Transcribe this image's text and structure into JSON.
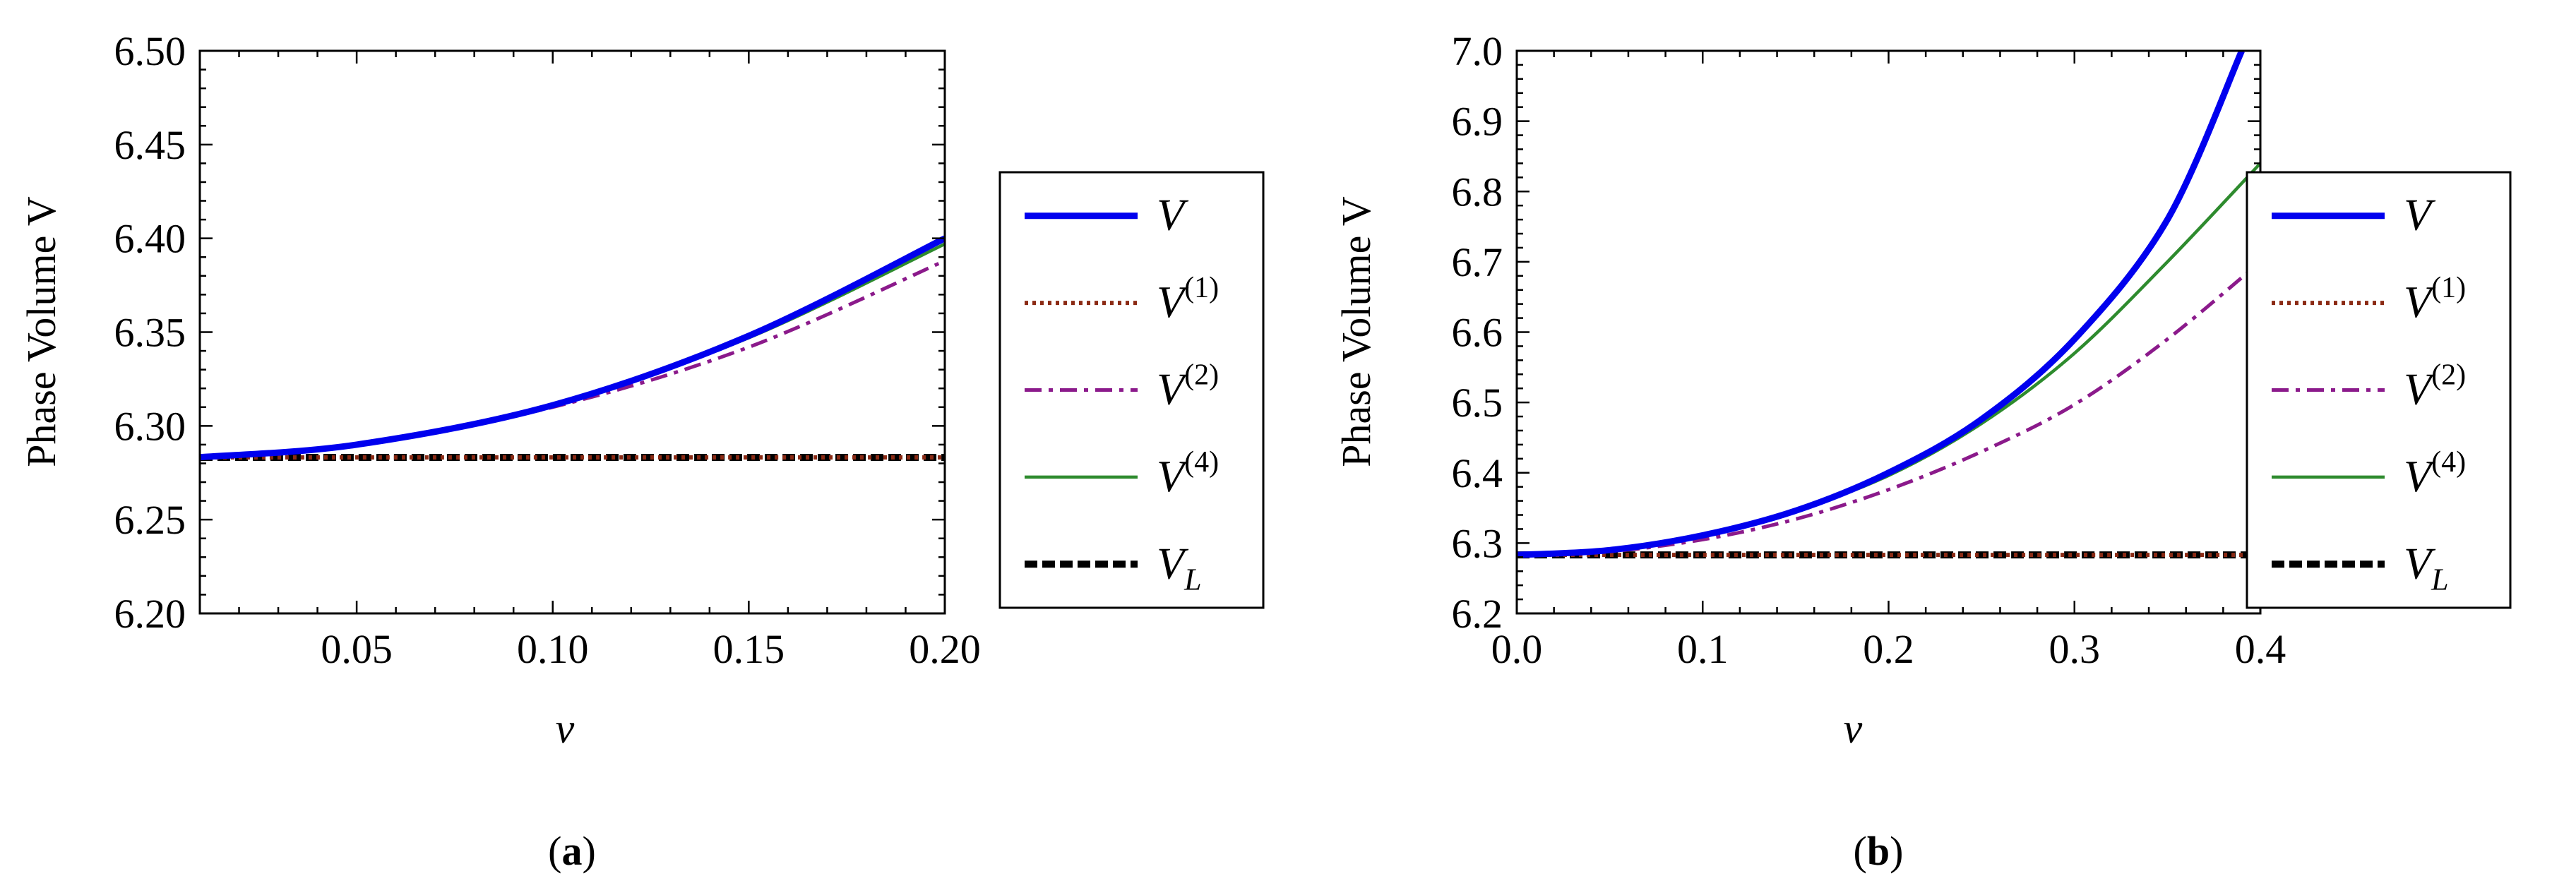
{
  "colors": {
    "V": "#0000ee",
    "V1": "#8b2a14",
    "V2": "#8b1a8b",
    "V4": "#2e8b2e",
    "VL": "#000000"
  },
  "chart_data": [
    {
      "id": "a",
      "type": "line",
      "caption_prefix": "(",
      "caption_bold": "a",
      "caption_suffix": ")",
      "title": "",
      "xlabel": "ν",
      "ylabel": "Phase Volume V",
      "xlim": [
        0.01,
        0.2
      ],
      "ylim": [
        6.2,
        6.5
      ],
      "x_ticks": [
        0.05,
        0.1,
        0.15,
        0.2
      ],
      "x_tick_labels": [
        "0.05",
        "0.10",
        "0.15",
        "0.20"
      ],
      "y_ticks": [
        6.2,
        6.25,
        6.3,
        6.35,
        6.4,
        6.45,
        6.5
      ],
      "y_tick_labels": [
        "6.20",
        "6.25",
        "6.30",
        "6.35",
        "6.40",
        "6.45",
        "6.50"
      ],
      "series": [
        {
          "key": "V",
          "name": "V",
          "sup": "",
          "sub": "",
          "style": "solid-thick",
          "x": [
            0.01,
            0.05,
            0.1,
            0.15,
            0.2
          ],
          "values": [
            6.2833,
            6.29,
            6.311,
            6.348,
            6.4
          ]
        },
        {
          "key": "V1",
          "name": "V",
          "sup": "(1)",
          "sub": "",
          "style": "dotted",
          "x": [
            0.01,
            0.2
          ],
          "values": [
            6.2832,
            6.2832
          ]
        },
        {
          "key": "V2",
          "name": "V",
          "sup": "(2)",
          "sub": "",
          "style": "dashdot",
          "x": [
            0.01,
            0.05,
            0.1,
            0.15,
            0.2
          ],
          "values": [
            6.2833,
            6.29,
            6.31,
            6.342,
            6.388
          ]
        },
        {
          "key": "V4",
          "name": "V",
          "sup": "(4)",
          "sub": "",
          "style": "solid",
          "x": [
            0.01,
            0.05,
            0.1,
            0.15,
            0.2
          ],
          "values": [
            6.2833,
            6.29,
            6.311,
            6.347,
            6.397
          ]
        },
        {
          "key": "VL",
          "name": "V",
          "sup": "",
          "sub": "L",
          "style": "dashed-thick",
          "x": [
            0.01,
            0.2
          ],
          "values": [
            6.2832,
            6.2832
          ]
        }
      ]
    },
    {
      "id": "b",
      "type": "line",
      "caption_prefix": "(",
      "caption_bold": "b",
      "caption_suffix": ")",
      "title": "",
      "xlabel": "ν",
      "ylabel": "Phase Volume V",
      "xlim": [
        0.0,
        0.4
      ],
      "ylim": [
        6.2,
        7.0
      ],
      "x_ticks": [
        0.0,
        0.1,
        0.2,
        0.3,
        0.4
      ],
      "x_tick_labels": [
        "0.0",
        "0.1",
        "0.2",
        "0.3",
        "0.4"
      ],
      "y_ticks": [
        6.2,
        6.3,
        6.4,
        6.5,
        6.6,
        6.7,
        6.8,
        6.9,
        7.0
      ],
      "y_tick_labels": [
        "6.2",
        "6.3",
        "6.4",
        "6.5",
        "6.6",
        "6.7",
        "6.8",
        "6.9",
        "7.0"
      ],
      "series": [
        {
          "key": "V",
          "name": "V",
          "sup": "",
          "sub": "",
          "style": "solid-thick",
          "x": [
            0.0,
            0.05,
            0.1,
            0.15,
            0.2,
            0.25,
            0.3,
            0.35,
            0.39
          ],
          "values": [
            6.2832,
            6.29,
            6.311,
            6.346,
            6.4,
            6.476,
            6.59,
            6.76,
            7.0
          ]
        },
        {
          "key": "V1",
          "name": "V",
          "sup": "(1)",
          "sub": "",
          "style": "dotted",
          "x": [
            0.0,
            0.4
          ],
          "values": [
            6.2832,
            6.2832
          ]
        },
        {
          "key": "V2",
          "name": "V",
          "sup": "(2)",
          "sub": "",
          "style": "dashdot",
          "x": [
            0.0,
            0.05,
            0.1,
            0.15,
            0.2,
            0.25,
            0.3,
            0.35,
            0.4
          ],
          "values": [
            6.2832,
            6.288,
            6.305,
            6.334,
            6.376,
            6.43,
            6.497,
            6.59,
            6.7
          ]
        },
        {
          "key": "V4",
          "name": "V",
          "sup": "(4)",
          "sub": "",
          "style": "solid",
          "x": [
            0.0,
            0.05,
            0.1,
            0.15,
            0.2,
            0.25,
            0.3,
            0.35,
            0.4
          ],
          "values": [
            6.2832,
            6.29,
            6.31,
            6.346,
            6.396,
            6.47,
            6.57,
            6.7,
            6.84
          ]
        },
        {
          "key": "VL",
          "name": "V",
          "sup": "",
          "sub": "L",
          "style": "dashed-thick",
          "x": [
            0.0,
            0.4
          ],
          "values": [
            6.2832,
            6.2832
          ]
        }
      ]
    }
  ]
}
